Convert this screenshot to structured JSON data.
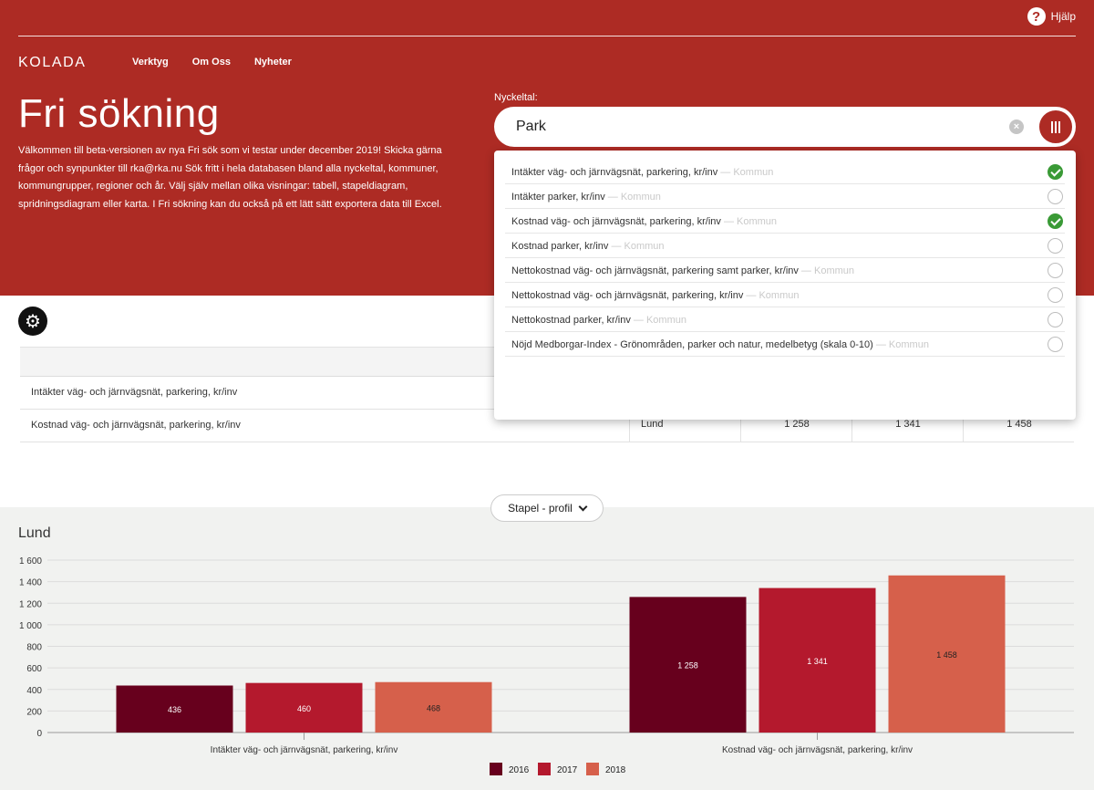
{
  "header": {
    "help_label": "Hjälp",
    "logo": "KOLADA",
    "nav": [
      "Verktyg",
      "Om Oss",
      "Nyheter"
    ],
    "title": "Fri sökning",
    "intro": "Välkommen till beta-versionen av nya Fri sök som vi testar under december 2019! Skicka gärna frågor och synpunkter till rka@rka.nu Sök fritt i hela databasen bland alla nyckeltal, kommuner, kommungrupper, regioner och år. Välj själv mellan olika visningar: tabell, stapeldiagram, spridningsdiagram eller karta. I Fri sökning kan du också på ett lätt sätt exportera data till Excel."
  },
  "search": {
    "label": "Nyckeltal:",
    "value": "Park"
  },
  "dropdown": {
    "items": [
      {
        "label": "Intäkter väg- och järnvägsnät, parkering, kr/inv",
        "sub": " — Kommun",
        "checked": true
      },
      {
        "label": "Intäkter parker, kr/inv",
        "sub": " — Kommun",
        "checked": false
      },
      {
        "label": "Kostnad väg- och järnvägsnät, parkering, kr/inv",
        "sub": " — Kommun",
        "checked": true
      },
      {
        "label": "Kostnad parker, kr/inv",
        "sub": " — Kommun",
        "checked": false
      },
      {
        "label": "Nettokostnad väg- och järnvägsnät, parkering samt parker, kr/inv",
        "sub": " — Kommun",
        "checked": false
      },
      {
        "label": "Nettokostnad väg- och järnvägsnät, parkering, kr/inv",
        "sub": " — Kommun",
        "checked": false
      },
      {
        "label": "Nettokostnad parker, kr/inv",
        "sub": " — Kommun",
        "checked": false
      },
      {
        "label": "Nöjd Medborgar-Index - Grönområden, parker och natur, medelbetyg (skala 0-10)",
        "sub": " — Kommun",
        "checked": false
      }
    ]
  },
  "table": {
    "rows": [
      {
        "name": "Intäkter väg- och järnvägsnät, parkering, kr/inv"
      },
      {
        "name": "Kostnad väg- och järnvägsnät, parkering, kr/inv",
        "municipality": "Lund",
        "values": [
          "1 258",
          "1 341",
          "1 458"
        ]
      }
    ]
  },
  "chart_select": "Stapel - profil",
  "chart_title": "Lund",
  "chart_data": {
    "type": "bar",
    "title": "Lund",
    "categories": [
      "Intäkter väg- och järnvägsnät, parkering, kr/inv",
      "Kostnad väg- och järnvägsnät, parkering, kr/inv"
    ],
    "series": [
      {
        "name": "2016",
        "values": [
          436,
          1258
        ],
        "labels": [
          "436",
          "1 258"
        ],
        "color": "#67001d"
      },
      {
        "name": "2017",
        "values": [
          460,
          1341
        ],
        "labels": [
          "460",
          "1 341"
        ],
        "color": "#b4192d"
      },
      {
        "name": "2018",
        "values": [
          468,
          1458
        ],
        "labels": [
          "468",
          "1 458"
        ],
        "color": "#d6604b"
      }
    ],
    "yticks": [
      0,
      200,
      400,
      600,
      800,
      1000,
      1200,
      1400,
      1600
    ],
    "ytick_labels": [
      "0",
      "200",
      "400",
      "600",
      "800",
      "1 000",
      "1 200",
      "1 400",
      "1 600"
    ],
    "ylim": [
      0,
      1600
    ],
    "grid": true,
    "legend": "bottom-center"
  }
}
